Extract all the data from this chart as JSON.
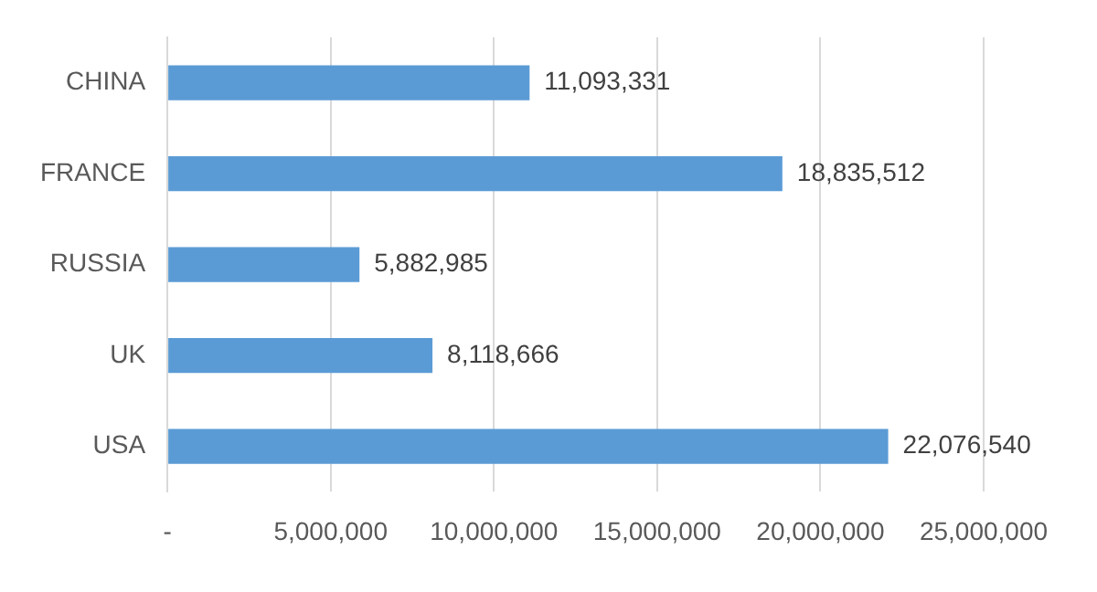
{
  "chart_data": {
    "type": "bar",
    "orientation": "horizontal",
    "categories": [
      "CHINA",
      "FRANCE",
      "RUSSIA",
      "UK",
      "USA"
    ],
    "values": [
      11093331,
      18835512,
      5882985,
      8118666,
      22076540
    ],
    "value_labels": [
      "11,093,331",
      "18,835,512",
      "5,882,985",
      "8,118,666",
      "22,076,540"
    ],
    "color": "#5b9bd5",
    "grid": "x",
    "legend": false,
    "xlim": [
      0,
      25000000
    ],
    "xticks": [
      {
        "value": 0,
        "label": "-"
      },
      {
        "value": 5000000,
        "label": "5,000,000"
      },
      {
        "value": 10000000,
        "label": "10,000,000"
      },
      {
        "value": 15000000,
        "label": "15,000,000"
      },
      {
        "value": 20000000,
        "label": "20,000,000"
      },
      {
        "value": 25000000,
        "label": "25,000,000"
      }
    ]
  }
}
